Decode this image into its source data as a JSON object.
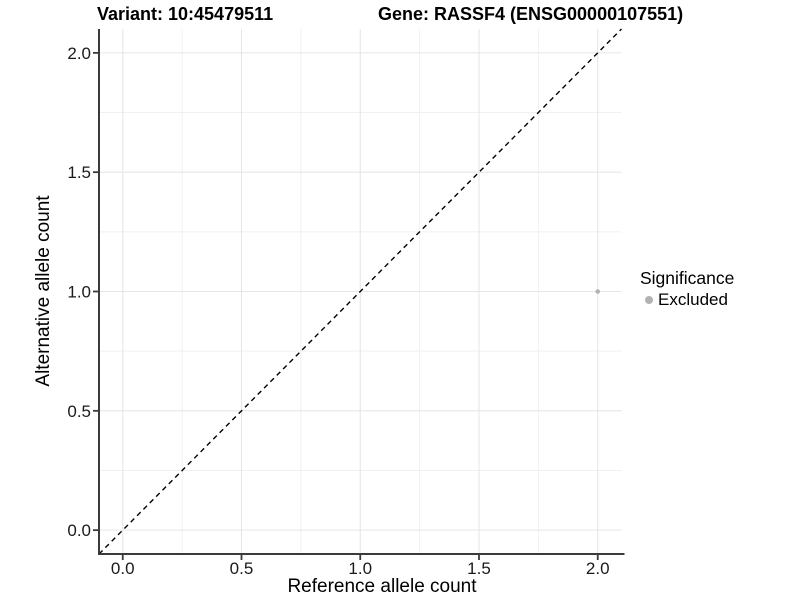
{
  "chart_data": {
    "type": "scatter",
    "title_left": "Variant: 10:45479511",
    "title_right": "Gene: RASSF4 (ENSG00000107551)",
    "xlabel": "Reference allele count",
    "ylabel": "Alternative allele count",
    "xlim": [
      -0.1,
      2.1
    ],
    "ylim": [
      -0.1,
      2.1
    ],
    "xticks": [
      0.0,
      0.5,
      1.0,
      1.5,
      2.0
    ],
    "yticks": [
      0.0,
      0.5,
      1.0,
      1.5,
      2.0
    ],
    "minor_ticks_x": [
      0.25,
      0.75,
      1.25,
      1.75
    ],
    "minor_ticks_y": [
      0.25,
      0.75,
      1.25,
      1.75
    ],
    "tick_decimals": 1,
    "grid": "major+minor",
    "legend_position": "right",
    "identity_line": {
      "style": "dashed",
      "color": "#000000",
      "x1": -0.1,
      "y1": -0.1,
      "x2": 2.1,
      "y2": 2.1
    },
    "series": [
      {
        "name": "Excluded",
        "color": "#b2b2b2",
        "point_radius": 2.3,
        "points": [
          [
            2.0,
            1.0
          ]
        ]
      }
    ],
    "legend": {
      "title": "Significance",
      "items": [
        {
          "label": "Excluded",
          "color": "#b2b2b2"
        }
      ]
    },
    "colors": {
      "grid_major": "#e6e6e6",
      "grid_minor": "#f1f1f1",
      "axis": "#3b3b3b",
      "tick_text": "#1a1a1a",
      "title_text": "#000000"
    }
  }
}
